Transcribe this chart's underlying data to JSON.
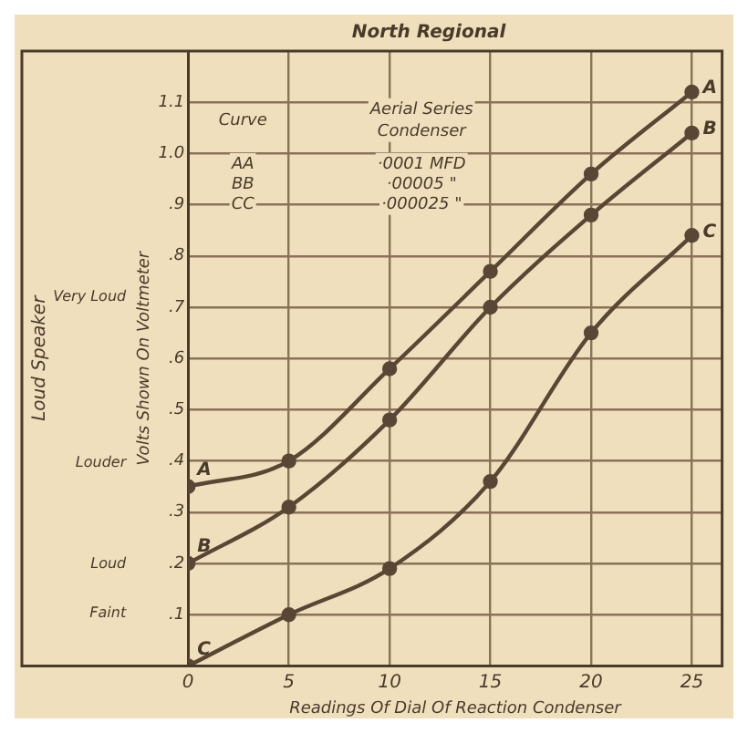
{
  "chart_data": {
    "type": "line",
    "title": "North Regional",
    "xlabel": "Readings Of Dial Of Reaction Condenser",
    "ylabel": "Volts Shown On Voltmeter",
    "x": [
      0,
      5,
      10,
      15,
      20,
      25
    ],
    "series": [
      {
        "name": "A",
        "color": "#5a4634",
        "values": [
          0.35,
          0.4,
          0.58,
          0.77,
          0.96,
          1.12
        ]
      },
      {
        "name": "B",
        "color": "#5a4634",
        "values": [
          0.2,
          0.31,
          0.48,
          0.7,
          0.88,
          1.04
        ]
      },
      {
        "name": "C",
        "color": "#5a4634",
        "values": [
          0,
          0.1,
          0.19,
          0.36,
          0.65,
          0.84
        ]
      }
    ],
    "xlim": [
      0,
      26.5
    ],
    "xticks": [
      0,
      5,
      10,
      15,
      20,
      25
    ],
    "ylim": [
      0,
      1.2
    ],
    "yticks": [
      {
        "value": 0.1,
        "label": ".1"
      },
      {
        "value": 0.2,
        "label": ".2"
      },
      {
        "value": 0.3,
        "label": ".3"
      },
      {
        "value": 0.4,
        "label": ".4"
      },
      {
        "value": 0.5,
        "label": ".5"
      },
      {
        "value": 0.6,
        "label": ".6"
      },
      {
        "value": 0.7,
        "label": ".7"
      },
      {
        "value": 0.8,
        "label": ".8"
      },
      {
        "value": 0.9,
        "label": ".9"
      },
      {
        "value": 1.0,
        "label": "1.0"
      },
      {
        "value": 1.1,
        "label": "1.1"
      }
    ],
    "annotations": [
      "Curve",
      "Aerial Series Condenser",
      "AA",
      "·0001 MFD",
      "BB",
      "·00005 \"",
      "CC",
      "·000025 \"",
      "Loud Speaker",
      "Very Loud",
      "Louder",
      "Loud",
      "Faint"
    ],
    "grid": true,
    "marker": "circle",
    "line_style": "solid",
    "legend": false
  }
}
